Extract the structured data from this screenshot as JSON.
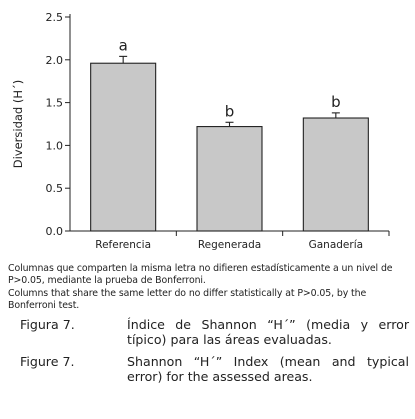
{
  "chart_data": {
    "type": "bar",
    "categories": [
      "Referencia",
      "Regenerada",
      "Ganadería"
    ],
    "values": [
      1.96,
      1.22,
      1.32
    ],
    "errors": [
      0.08,
      0.05,
      0.06
    ],
    "group_letters": [
      "a",
      "b",
      "b"
    ],
    "ylabel": "Diversidad (H´)",
    "ylim": [
      0.0,
      2.5
    ],
    "yticks": [
      "0.0",
      "0.5",
      "1.0",
      "1.5",
      "2.0",
      "2.5"
    ],
    "bar_color": "#c8c8c8",
    "grid": false
  },
  "notes": {
    "es": "Columnas que comparten la misma letra no difieren estadísticamente a un nivel de P>0.05, mediante la prueba de Bonferroni.",
    "en": "Columns that share the same letter do no differ statistically at P>0.05, by the Bonferroni test."
  },
  "captions": [
    {
      "label": "Figura 7.",
      "text": "Índice de Shannon “H´” (media y error típico) para las áreas evaluadas."
    },
    {
      "label": "Figure 7.",
      "text": "Shannon “H´” Index (mean and typical error) for the assessed areas."
    }
  ]
}
